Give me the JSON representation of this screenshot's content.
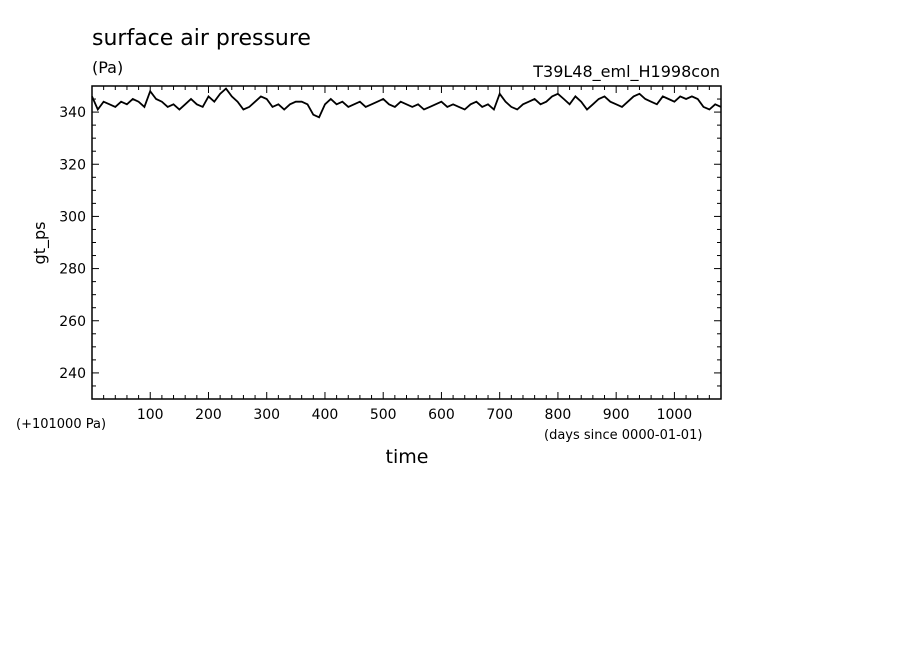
{
  "chart_data": {
    "type": "line",
    "title": "surface air pressure",
    "units": "(Pa)",
    "run_label": "T39L48_eml_H1998con",
    "xlabel": "time",
    "xunits": "(days since 0000-01-01)",
    "ylabel": "gt_ps",
    "yoffset_note": "(+101000 Pa)",
    "xlim": [
      0,
      1080
    ],
    "ylim": [
      230,
      350
    ],
    "xticks": [
      100,
      200,
      300,
      400,
      500,
      600,
      700,
      800,
      900,
      1000
    ],
    "yticks": [
      240,
      260,
      280,
      300,
      320,
      340
    ],
    "line_color": "#000000",
    "grid": false,
    "series": [
      {
        "x": [
          0,
          10,
          20,
          30,
          40,
          50,
          60,
          70,
          80,
          90,
          100,
          110,
          120,
          130,
          140,
          150,
          160,
          170,
          180,
          190,
          200,
          210,
          220,
          230,
          240,
          250,
          260,
          270,
          280,
          290,
          300,
          310,
          320,
          330,
          340,
          350,
          360,
          370,
          380,
          390,
          400,
          410,
          420,
          430,
          440,
          450,
          460,
          470,
          480,
          490,
          500,
          510,
          520,
          530,
          540,
          550,
          560,
          570,
          580,
          590,
          600,
          610,
          620,
          630,
          640,
          650,
          660,
          670,
          680,
          690,
          700,
          710,
          720,
          730,
          740,
          750,
          760,
          770,
          780,
          790,
          800,
          810,
          820,
          830,
          840,
          850,
          860,
          870,
          880,
          890,
          900,
          910,
          920,
          930,
          940,
          950,
          960,
          970,
          980,
          990,
          1000,
          1010,
          1020,
          1030,
          1040,
          1050,
          1060,
          1070,
          1080
        ],
        "y": [
          346,
          341,
          344,
          343,
          342,
          344,
          343,
          345,
          344,
          342,
          348,
          345,
          344,
          342,
          343,
          341,
          343,
          345,
          343,
          342,
          346,
          344,
          347,
          349,
          346,
          344,
          341,
          342,
          344,
          346,
          345,
          342,
          343,
          341,
          343,
          344,
          344,
          343,
          339,
          338,
          343,
          345,
          343,
          344,
          342,
          343,
          344,
          342,
          343,
          344,
          345,
          343,
          342,
          344,
          343,
          342,
          343,
          341,
          342,
          343,
          344,
          342,
          343,
          342,
          341,
          343,
          344,
          342,
          343,
          341,
          347,
          344,
          342,
          341,
          343,
          344,
          345,
          343,
          344,
          346,
          347,
          345,
          343,
          346,
          344,
          341,
          343,
          345,
          346,
          344,
          343,
          342,
          344,
          346,
          347,
          345,
          344,
          343,
          346,
          345,
          344,
          346,
          345,
          346,
          345,
          342,
          341,
          343,
          342
        ]
      }
    ]
  }
}
